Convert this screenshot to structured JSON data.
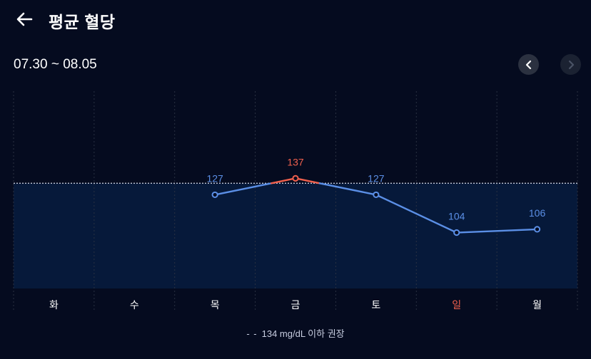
{
  "header": {
    "title": "평균 혈당",
    "back_icon": "arrow-left-icon"
  },
  "date_range": "07.30 ~ 08.05",
  "nav": {
    "prev_icon": "chevron-left-icon",
    "next_icon": "chevron-right-icon"
  },
  "legend": {
    "marker": "- -",
    "text": "134 mg/dL 이하 권장"
  },
  "colors": {
    "background": "#050b1f",
    "band": "#06193a",
    "normal": "#5b8fe6",
    "high": "#f0604d",
    "sunday": "#f0604d"
  },
  "chart_data": {
    "type": "line",
    "categories": [
      "화",
      "수",
      "목",
      "금",
      "토",
      "일",
      "월"
    ],
    "values": [
      null,
      null,
      127,
      137,
      127,
      104,
      106
    ],
    "threshold": 134,
    "ylim": [
      70,
      190
    ],
    "grid": "vertical dotted",
    "highlight_category": "일"
  }
}
